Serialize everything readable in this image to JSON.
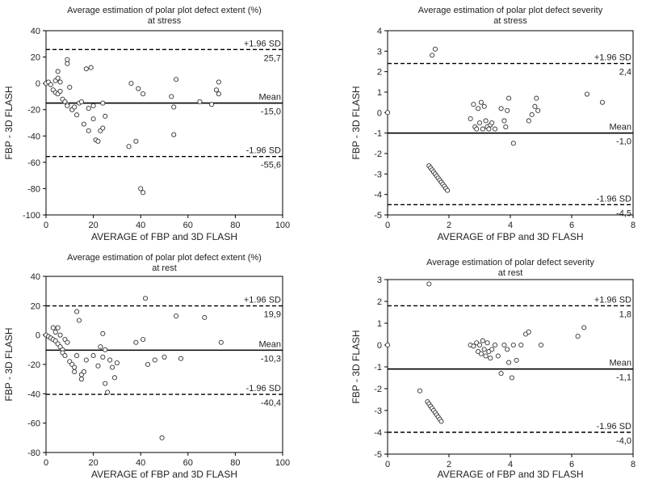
{
  "chart_data": [
    {
      "type": "scatter",
      "title": "Average estimation of polar plot defect extent (%)",
      "subtitle": "at stress",
      "xlabel": "AVERAGE of FBP and 3D FLASH",
      "ylabel": "FBP - 3D FLASH",
      "xlim": [
        0,
        100
      ],
      "ylim": [
        -100,
        40
      ],
      "xticks": [
        0,
        20,
        40,
        60,
        80,
        100
      ],
      "yticks": [
        -100,
        -80,
        -60,
        -40,
        -20,
        0,
        20,
        40
      ],
      "grid": false,
      "reference_lines": [
        {
          "label": "+1.96 SD",
          "value": 25.7,
          "value_label": "25,7",
          "style": "dashed"
        },
        {
          "label": "Mean",
          "value": -15.0,
          "value_label": "-15,0",
          "style": "solid"
        },
        {
          "label": "-1.96 SD",
          "value": -55.6,
          "value_label": "-55,6",
          "style": "dashed"
        }
      ],
      "points": [
        [
          0,
          0
        ],
        [
          1,
          1
        ],
        [
          2,
          -1
        ],
        [
          3,
          -5
        ],
        [
          4,
          -7
        ],
        [
          4,
          2
        ],
        [
          5,
          -8
        ],
        [
          5,
          9
        ],
        [
          5,
          4
        ],
        [
          6,
          -6
        ],
        [
          6,
          1
        ],
        [
          7,
          -12
        ],
        [
          8,
          -14
        ],
        [
          9,
          -16
        ],
        [
          9,
          -17
        ],
        [
          9,
          18
        ],
        [
          9,
          15
        ],
        [
          10,
          -3
        ],
        [
          11,
          -20
        ],
        [
          11,
          -20
        ],
        [
          12,
          -18
        ],
        [
          13,
          -24
        ],
        [
          14,
          -15
        ],
        [
          15,
          -14
        ],
        [
          16,
          -31
        ],
        [
          17,
          11
        ],
        [
          18,
          -36
        ],
        [
          18,
          -19
        ],
        [
          19,
          12
        ],
        [
          20,
          -27
        ],
        [
          20,
          -17
        ],
        [
          21,
          -43
        ],
        [
          22,
          -44
        ],
        [
          23,
          -36
        ],
        [
          24,
          -15
        ],
        [
          24,
          -34
        ],
        [
          25,
          -25
        ],
        [
          35,
          -48
        ],
        [
          36,
          0
        ],
        [
          38,
          -44
        ],
        [
          39,
          -4
        ],
        [
          40,
          -80
        ],
        [
          41,
          -8
        ],
        [
          41,
          -83
        ],
        [
          53,
          -10
        ],
        [
          54,
          -18
        ],
        [
          54,
          -39
        ],
        [
          55,
          3
        ],
        [
          65,
          -14
        ],
        [
          70,
          -16
        ],
        [
          72,
          -5
        ],
        [
          73,
          1
        ],
        [
          73,
          -8
        ]
      ]
    },
    {
      "type": "scatter",
      "title": "Average estimation of polar plot defect severity",
      "subtitle": "at stress",
      "xlabel": "AVERAGE of FBP and 3D FLASH",
      "ylabel": "FBP - 3D FLASH",
      "xlim": [
        0,
        8
      ],
      "ylim": [
        -5,
        4
      ],
      "xticks": [
        0,
        2,
        4,
        6,
        8
      ],
      "yticks": [
        -5,
        -4,
        -3,
        -2,
        -1,
        0,
        1,
        2,
        3,
        4
      ],
      "grid": false,
      "reference_lines": [
        {
          "label": "+1.96 SD",
          "value": 2.4,
          "value_label": "2,4",
          "style": "dashed"
        },
        {
          "label": "Mean",
          "value": -1.0,
          "value_label": "-1,0",
          "style": "solid"
        },
        {
          "label": "-1.96 SD",
          "value": -4.5,
          "value_label": "-4,5",
          "style": "dashed"
        }
      ],
      "points": [
        [
          0,
          0
        ],
        [
          1.45,
          2.8
        ],
        [
          1.55,
          3.1
        ],
        [
          1.35,
          -2.6
        ],
        [
          1.4,
          -2.7
        ],
        [
          1.45,
          -2.8
        ],
        [
          1.5,
          -2.9
        ],
        [
          1.55,
          -3.0
        ],
        [
          1.6,
          -3.1
        ],
        [
          1.65,
          -3.2
        ],
        [
          1.7,
          -3.3
        ],
        [
          1.75,
          -3.4
        ],
        [
          1.8,
          -3.5
        ],
        [
          1.85,
          -3.6
        ],
        [
          1.9,
          -3.7
        ],
        [
          1.95,
          -3.8
        ],
        [
          2.7,
          -0.3
        ],
        [
          2.8,
          0.4
        ],
        [
          2.85,
          -0.7
        ],
        [
          2.9,
          -0.8
        ],
        [
          2.95,
          0.2
        ],
        [
          3.0,
          -0.5
        ],
        [
          3.05,
          0.5
        ],
        [
          3.1,
          -0.8
        ],
        [
          3.15,
          0.3
        ],
        [
          3.2,
          -0.4
        ],
        [
          3.25,
          -0.7
        ],
        [
          3.3,
          -0.8
        ],
        [
          3.35,
          -0.6
        ],
        [
          3.4,
          -0.5
        ],
        [
          3.5,
          -0.8
        ],
        [
          3.7,
          0.2
        ],
        [
          3.8,
          -0.4
        ],
        [
          3.85,
          -0.7
        ],
        [
          3.9,
          0.1
        ],
        [
          3.95,
          0.7
        ],
        [
          4.1,
          -1.5
        ],
        [
          4.6,
          -0.4
        ],
        [
          4.7,
          -0.1
        ],
        [
          4.8,
          0.3
        ],
        [
          4.85,
          0.7
        ],
        [
          4.9,
          0.1
        ],
        [
          6.5,
          0.9
        ],
        [
          7.0,
          0.5
        ]
      ]
    },
    {
      "type": "scatter",
      "title": "Average estimation of polar plot defect extent (%)",
      "subtitle": "at rest",
      "xlabel": "AVERAGE of FBP and 3D FLASH",
      "ylabel": "FBP - 3D FLASH",
      "xlim": [
        0,
        100
      ],
      "ylim": [
        -80,
        40
      ],
      "xticks": [
        0,
        20,
        40,
        60,
        80,
        100
      ],
      "yticks": [
        -80,
        -60,
        -40,
        -20,
        0,
        20,
        40
      ],
      "grid": false,
      "reference_lines": [
        {
          "label": "+1.96 SD",
          "value": 19.9,
          "value_label": "19,9",
          "style": "dashed"
        },
        {
          "label": "Mean",
          "value": -10.3,
          "value_label": "-10,3",
          "style": "solid"
        },
        {
          "label": "-1.96 SD",
          "value": -40.4,
          "value_label": "-40,4",
          "style": "dashed"
        }
      ],
      "points": [
        [
          0,
          0
        ],
        [
          1,
          -1
        ],
        [
          2,
          -2
        ],
        [
          3,
          -3
        ],
        [
          3,
          5
        ],
        [
          4,
          -4
        ],
        [
          4,
          2
        ],
        [
          5,
          -6
        ],
        [
          5,
          5
        ],
        [
          6,
          -8
        ],
        [
          6,
          0
        ],
        [
          7,
          -10
        ],
        [
          7,
          -12
        ],
        [
          8,
          -14
        ],
        [
          8,
          -3
        ],
        [
          9,
          -5
        ],
        [
          10,
          -18
        ],
        [
          11,
          -20
        ],
        [
          12,
          -22
        ],
        [
          12,
          -25
        ],
        [
          13,
          -14
        ],
        [
          13,
          16
        ],
        [
          14,
          10
        ],
        [
          15,
          -27
        ],
        [
          15,
          -30
        ],
        [
          16,
          -25
        ],
        [
          17,
          -17
        ],
        [
          20,
          -14
        ],
        [
          22,
          -21
        ],
        [
          23,
          -8
        ],
        [
          24,
          -15
        ],
        [
          24,
          1
        ],
        [
          25,
          -10
        ],
        [
          25,
          -33
        ],
        [
          26,
          -39
        ],
        [
          27,
          -17
        ],
        [
          28,
          -22
        ],
        [
          29,
          -29
        ],
        [
          30,
          -19
        ],
        [
          38,
          -5
        ],
        [
          41,
          -3
        ],
        [
          42,
          25
        ],
        [
          43,
          -20
        ],
        [
          46,
          -17
        ],
        [
          49,
          -70
        ],
        [
          50,
          -15
        ],
        [
          55,
          13
        ],
        [
          57,
          -16
        ],
        [
          67,
          12
        ],
        [
          74,
          -5
        ]
      ]
    },
    {
      "type": "scatter",
      "title": "Average estimation of  polar defect severity",
      "subtitle": "at rest",
      "xlabel": "AVERAGE of FBP and 3D FLASH",
      "ylabel": "FBP - 3D FLASH",
      "xlim": [
        0,
        8
      ],
      "ylim": [
        -5,
        3
      ],
      "xticks": [
        0,
        2,
        4,
        6,
        8
      ],
      "yticks": [
        -5,
        -4,
        -3,
        -2,
        -1,
        0,
        1,
        2,
        3
      ],
      "grid": false,
      "reference_lines": [
        {
          "label": "+1.96 SD",
          "value": 1.8,
          "value_label": "1,8",
          "style": "dashed"
        },
        {
          "label": "Mean",
          "value": -1.1,
          "value_label": "-1,1",
          "style": "solid"
        },
        {
          "label": "-1.96 SD",
          "value": -4.0,
          "value_label": "-4,0",
          "style": "dashed"
        }
      ],
      "points": [
        [
          0,
          0
        ],
        [
          1.05,
          -2.1
        ],
        [
          1.35,
          2.8
        ],
        [
          1.3,
          -2.6
        ],
        [
          1.35,
          -2.7
        ],
        [
          1.4,
          -2.8
        ],
        [
          1.45,
          -2.9
        ],
        [
          1.5,
          -3.0
        ],
        [
          1.55,
          -3.1
        ],
        [
          1.6,
          -3.2
        ],
        [
          1.65,
          -3.3
        ],
        [
          1.7,
          -3.4
        ],
        [
          1.75,
          -3.5
        ],
        [
          2.7,
          0.0
        ],
        [
          2.8,
          -0.05
        ],
        [
          2.9,
          0.1
        ],
        [
          2.95,
          -0.3
        ],
        [
          3.0,
          0.0
        ],
        [
          3.05,
          -0.4
        ],
        [
          3.1,
          0.2
        ],
        [
          3.15,
          -0.2
        ],
        [
          3.2,
          -0.5
        ],
        [
          3.25,
          0.1
        ],
        [
          3.3,
          -0.3
        ],
        [
          3.35,
          -0.6
        ],
        [
          3.4,
          -0.2
        ],
        [
          3.5,
          0.0
        ],
        [
          3.6,
          -0.5
        ],
        [
          3.7,
          -1.3
        ],
        [
          3.8,
          0.0
        ],
        [
          3.9,
          -0.2
        ],
        [
          3.95,
          -0.8
        ],
        [
          4.1,
          0.0
        ],
        [
          4.05,
          -1.5
        ],
        [
          4.2,
          -0.7
        ],
        [
          4.35,
          0.0
        ],
        [
          4.5,
          0.5
        ],
        [
          4.6,
          0.6
        ],
        [
          5.0,
          0.0
        ],
        [
          6.2,
          0.4
        ],
        [
          6.4,
          0.8
        ]
      ]
    }
  ]
}
